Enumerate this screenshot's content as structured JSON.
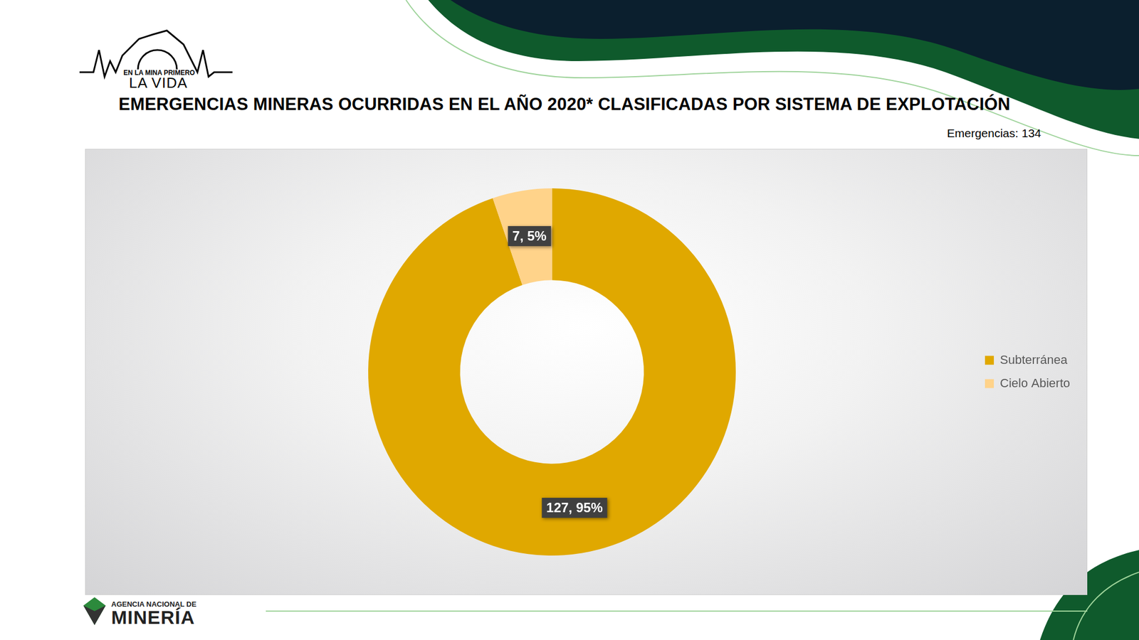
{
  "header": {
    "logo_top": "EN LA MINA PRIMERO",
    "logo_bottom": "LA VIDA"
  },
  "footer": {
    "agency_line1": "AGENCIA NACIONAL DE",
    "agency_line2": "MINERÍA"
  },
  "chart_data": {
    "type": "doughnut",
    "title": "EMERGENCIAS MINERAS OCURRIDAS EN EL AÑO 2020* CLASIFICADAS POR SISTEMA DE EXPLOTACIÓN",
    "subtitle": "Emergencias: 134",
    "categories": [
      "Subterránea",
      "Cielo Abierto"
    ],
    "values": [
      127,
      7
    ],
    "value_labels": [
      "127, 95%",
      "7, 5%"
    ],
    "colors": [
      "#E0A800",
      "#FFD38A"
    ],
    "data_labels": true,
    "legend": "right"
  }
}
